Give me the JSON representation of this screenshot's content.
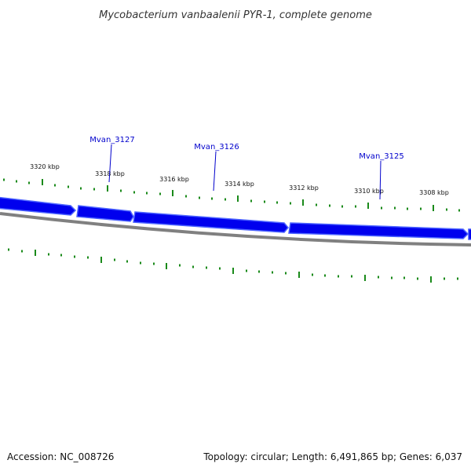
{
  "title": "Mycobacterium vanbaalenii PYR-1, complete genome",
  "footer": {
    "accession": "Accession: NC_008726",
    "summary": "Topology: circular; Length: 6,491,865 bp; Genes: 6,037"
  },
  "colors": {
    "gene": "#0000ee",
    "gene_highlight": "#3f52ff",
    "backbone": "#808080",
    "tick": "#1a8a1a",
    "gene_label": "#0000cc"
  },
  "ruler": {
    "labels": [
      "3320 kbp",
      "3318 kbp",
      "3316 kbp",
      "3314 kbp",
      "3312 kbp",
      "3310 kbp",
      "3308 kbp"
    ]
  },
  "genes": [
    {
      "name": "Mvan_3127"
    },
    {
      "name": "Mvan_3126"
    },
    {
      "name": "Mvan_3125"
    }
  ]
}
